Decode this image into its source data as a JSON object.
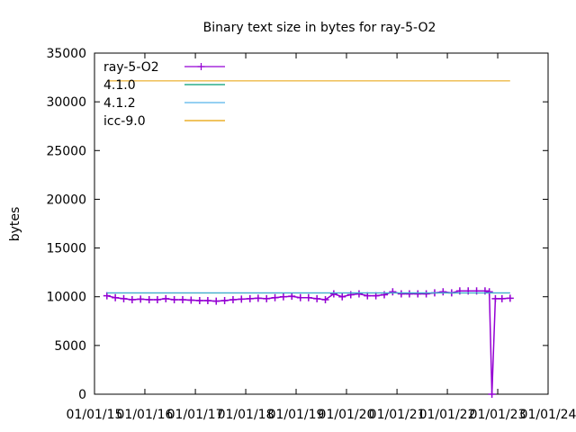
{
  "chart_data": {
    "type": "line",
    "title": "Binary text size in bytes for ray-5-O2",
    "xlabel": "",
    "ylabel": "bytes",
    "xlim": [
      "2015-01-01",
      "2024-01-01"
    ],
    "ylim": [
      0,
      35000
    ],
    "x_ticks": [
      "01/01/15",
      "01/01/16",
      "01/01/17",
      "01/01/18",
      "01/01/19",
      "01/01/20",
      "01/01/21",
      "01/01/22",
      "01/01/23",
      "01/01/24"
    ],
    "y_ticks": [
      "0",
      "5000",
      "10000",
      "15000",
      "20000",
      "25000",
      "30000",
      "35000"
    ],
    "grid": false,
    "legend_position": "top-left",
    "series": [
      {
        "name": "ray-5-O2",
        "color": "#9400d3",
        "style": "line-points",
        "x": [
          "2015-04-01",
          "2015-06-01",
          "2015-08-01",
          "2015-10-01",
          "2015-12-01",
          "2016-02-01",
          "2016-04-01",
          "2016-06-01",
          "2016-08-01",
          "2016-10-01",
          "2016-12-01",
          "2017-02-01",
          "2017-04-01",
          "2017-06-01",
          "2017-08-01",
          "2017-10-01",
          "2017-12-01",
          "2018-02-01",
          "2018-04-01",
          "2018-06-01",
          "2018-08-01",
          "2018-10-01",
          "2018-12-01",
          "2019-02-01",
          "2019-04-01",
          "2019-06-01",
          "2019-08-01",
          "2019-10-01",
          "2019-12-01",
          "2020-02-01",
          "2020-04-01",
          "2020-06-01",
          "2020-08-01",
          "2020-10-01",
          "2020-12-01",
          "2021-02-01",
          "2021-04-01",
          "2021-06-01",
          "2021-08-01",
          "2021-10-01",
          "2021-12-01",
          "2022-02-01",
          "2022-04-01",
          "2022-06-01",
          "2022-08-01",
          "2022-10-01",
          "2022-11-01",
          "2022-11-20",
          "2022-12-15",
          "2023-02-01",
          "2023-04-01"
        ],
        "values": [
          10100,
          9900,
          9800,
          9700,
          9750,
          9700,
          9700,
          9800,
          9700,
          9700,
          9650,
          9600,
          9600,
          9550,
          9600,
          9700,
          9750,
          9800,
          9850,
          9800,
          9900,
          10000,
          10050,
          9900,
          9900,
          9800,
          9700,
          10300,
          10000,
          10200,
          10300,
          10100,
          10100,
          10200,
          10500,
          10300,
          10300,
          10300,
          10300,
          10400,
          10500,
          10400,
          10600,
          10600,
          10600,
          10600,
          10500,
          0,
          9800,
          9800,
          9850
        ]
      },
      {
        "name": "4.1.0",
        "color": "#009e73",
        "style": "line",
        "x": [
          "2015-04-01",
          "2023-04-01"
        ],
        "values": [
          10380,
          10380
        ]
      },
      {
        "name": "4.1.2",
        "color": "#56b4e9",
        "style": "line",
        "x": [
          "2015-04-01",
          "2023-04-01"
        ],
        "values": [
          10420,
          10420
        ]
      },
      {
        "name": "icc-9.0",
        "color": "#e69f00",
        "style": "line",
        "x": [
          "2015-04-01",
          "2023-04-01"
        ],
        "values": [
          32150,
          32150
        ]
      }
    ]
  }
}
